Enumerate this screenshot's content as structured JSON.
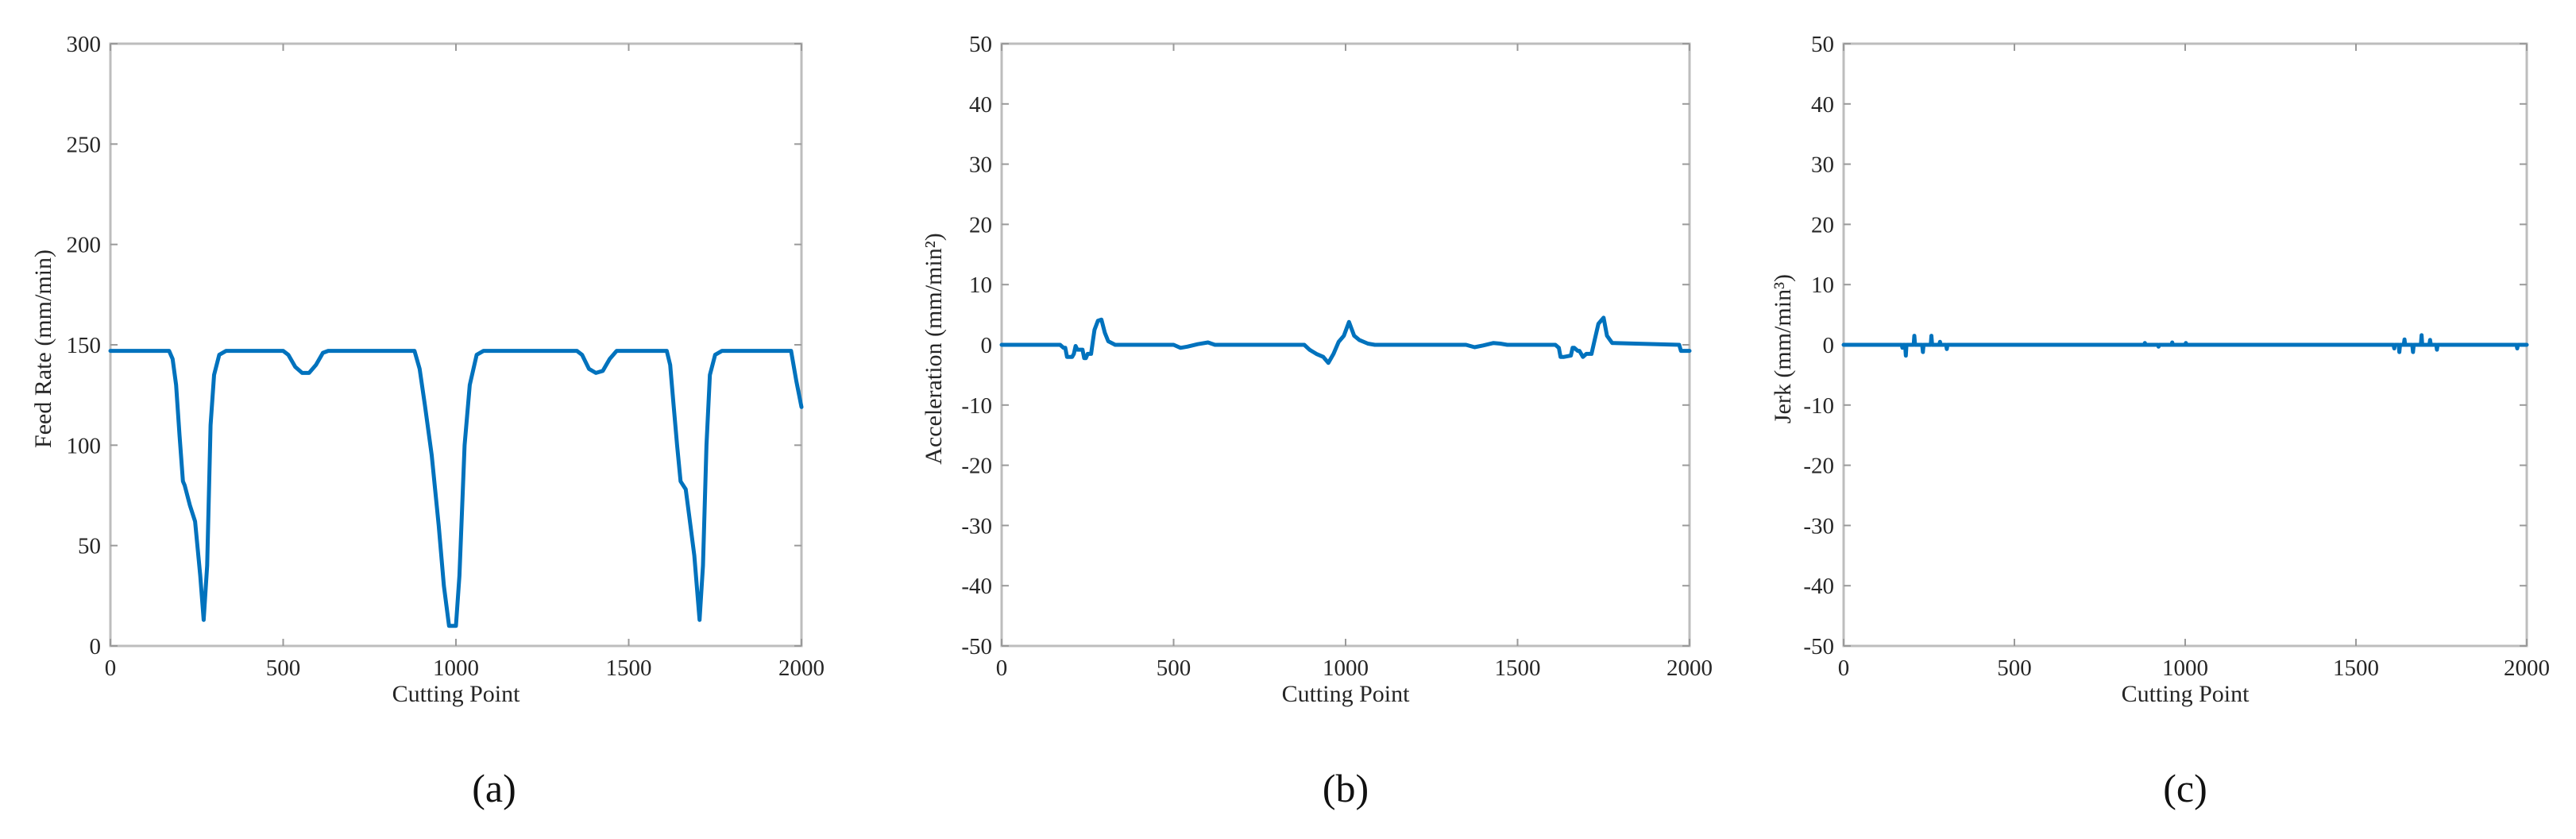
{
  "figure": {
    "line_color": "#0072BD",
    "axis_color": "#bdbdbd",
    "text_color": "#262626",
    "captions": [
      "(a)",
      "(b)",
      "(c)"
    ]
  },
  "chart_data": [
    {
      "type": "line",
      "panel": "a",
      "title": "",
      "xlabel": "Cutting Point",
      "ylabel": "Feed Rate (mm/min)",
      "xlim": [
        0,
        2000
      ],
      "ylim": [
        0,
        300
      ],
      "xticks": [
        0,
        500,
        1000,
        1500,
        2000
      ],
      "yticks": [
        0,
        50,
        100,
        150,
        200,
        250,
        300
      ],
      "grid": false,
      "legend": null,
      "series": [
        {
          "name": "Feed Rate",
          "x": [
            0,
            170,
            180,
            190,
            200,
            210,
            215,
            230,
            245,
            260,
            270,
            280,
            290,
            300,
            315,
            335,
            500,
            515,
            535,
            555,
            575,
            595,
            615,
            630,
            880,
            895,
            910,
            930,
            950,
            965,
            980,
            1000,
            1010,
            1025,
            1040,
            1060,
            1080,
            1350,
            1365,
            1385,
            1405,
            1425,
            1445,
            1465,
            1480,
            1610,
            1620,
            1630,
            1640,
            1650,
            1665,
            1675,
            1690,
            1705,
            1715,
            1725,
            1735,
            1750,
            1770,
            1970,
            1985,
            2000
          ],
          "y": [
            147,
            147,
            143,
            130,
            105,
            82,
            80,
            70,
            62,
            35,
            13,
            40,
            110,
            135,
            145,
            147,
            147,
            145,
            139,
            136,
            136,
            140,
            146,
            147,
            147,
            138,
            120,
            95,
            60,
            30,
            10,
            10,
            35,
            100,
            130,
            145,
            147,
            147,
            145,
            138,
            136,
            137,
            143,
            147,
            147,
            147,
            140,
            120,
            100,
            82,
            78,
            65,
            45,
            13,
            40,
            100,
            135,
            145,
            147,
            147,
            132,
            119
          ]
        }
      ]
    },
    {
      "type": "line",
      "panel": "b",
      "title": "",
      "xlabel": "Cutting Point",
      "ylabel": "Acceleration (mm/min²)",
      "xlim": [
        0,
        2000
      ],
      "ylim": [
        -50,
        50
      ],
      "xticks": [
        0,
        500,
        1000,
        1500,
        2000
      ],
      "yticks": [
        -50,
        -40,
        -30,
        -20,
        -10,
        0,
        10,
        20,
        30,
        40,
        50
      ],
      "grid": false,
      "legend": null,
      "series": [
        {
          "name": "Acceleration",
          "x": [
            0,
            170,
            180,
            185,
            190,
            205,
            210,
            215,
            220,
            225,
            235,
            240,
            245,
            250,
            260,
            265,
            270,
            280,
            290,
            300,
            310,
            330,
            500,
            520,
            540,
            570,
            600,
            620,
            880,
            895,
            915,
            935,
            950,
            965,
            980,
            995,
            1010,
            1025,
            1040,
            1065,
            1085,
            1350,
            1375,
            1400,
            1430,
            1450,
            1470,
            1610,
            1620,
            1625,
            1635,
            1655,
            1660,
            1665,
            1675,
            1680,
            1690,
            1700,
            1705,
            1715,
            1725,
            1735,
            1750,
            1760,
            1775,
            1970,
            1975,
            2000
          ],
          "y": [
            0,
            0,
            -0.5,
            -0.5,
            -2.0,
            -2.0,
            -1.5,
            -0.2,
            -0.8,
            -0.8,
            -0.8,
            -2.2,
            -2.2,
            -1.5,
            -1.5,
            0.5,
            2.5,
            4.0,
            4.2,
            2.0,
            0.6,
            0,
            0,
            -0.5,
            -0.3,
            0.1,
            0.4,
            0,
            0,
            -0.8,
            -1.5,
            -2.0,
            -3.0,
            -1.5,
            0.5,
            1.5,
            3.8,
            1.5,
            0.8,
            0.2,
            0,
            0,
            -0.4,
            -0.1,
            0.3,
            0.2,
            0,
            0,
            -0.5,
            -2.0,
            -2.0,
            -1.8,
            -0.5,
            -0.5,
            -1.0,
            -1.0,
            -2.0,
            -1.5,
            -1.5,
            -1.5,
            1.0,
            3.5,
            4.5,
            1.5,
            0.3,
            0,
            -1.0,
            -1.0
          ]
        }
      ]
    },
    {
      "type": "line",
      "panel": "c",
      "title": "",
      "xlabel": "Cutting Point",
      "ylabel": "Jerk (mm/min³)",
      "xlim": [
        0,
        2000
      ],
      "ylim": [
        -50,
        50
      ],
      "xticks": [
        0,
        500,
        1000,
        1500,
        2000
      ],
      "yticks": [
        -50,
        -40,
        -30,
        -20,
        -10,
        0,
        10,
        20,
        30,
        40,
        50
      ],
      "grid": false,
      "legend": null,
      "series": [
        {
          "name": "Jerk",
          "x": [
            0,
            170,
            172,
            174,
            180,
            182,
            184,
            205,
            207,
            209,
            230,
            232,
            234,
            255,
            257,
            259,
            280,
            282,
            284,
            300,
            302,
            304,
            880,
            882,
            884,
            920,
            922,
            924,
            960,
            962,
            964,
            1000,
            1002,
            1004,
            1610,
            1612,
            1614,
            1625,
            1627,
            1629,
            1640,
            1642,
            1644,
            1665,
            1667,
            1669,
            1690,
            1692,
            1694,
            1715,
            1717,
            1719,
            1735,
            1737,
            1739,
            1970,
            1972,
            1974,
            2000
          ],
          "y": [
            0,
            0,
            -0.5,
            0,
            0,
            -1.8,
            0,
            0,
            1.5,
            0,
            0,
            -1.2,
            0,
            0,
            1.5,
            0,
            0,
            0.5,
            0,
            0,
            -0.7,
            0,
            0,
            0.3,
            0,
            0,
            -0.3,
            0,
            0,
            0.4,
            0,
            0,
            0.3,
            0,
            0,
            -0.6,
            0,
            0,
            -1.2,
            0,
            0,
            0.9,
            0,
            0,
            -1.2,
            0,
            0,
            1.6,
            0,
            0,
            0.8,
            0,
            0,
            -0.8,
            0,
            0,
            -0.6,
            0,
            0
          ]
        }
      ]
    }
  ]
}
